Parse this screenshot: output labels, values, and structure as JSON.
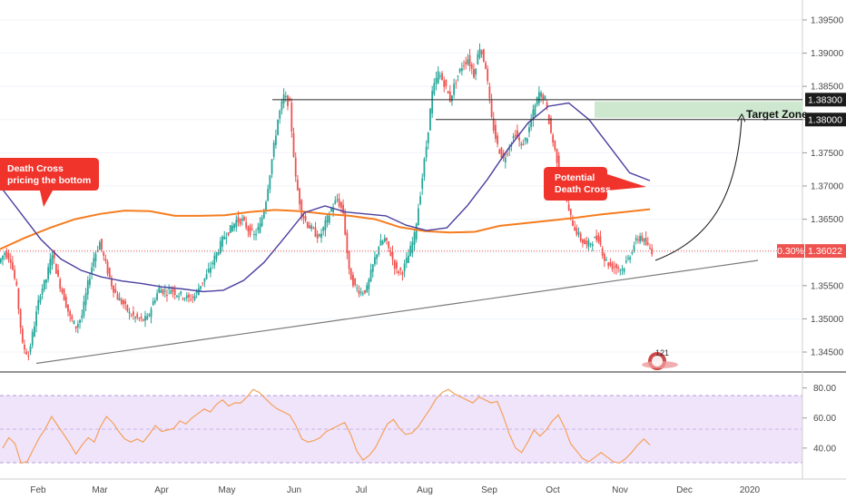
{
  "chart_data": {
    "type": "candlestick",
    "title": "",
    "price_axis": {
      "ticks": [
        "1.39500",
        "1.39000",
        "1.38500",
        "1.38000",
        "1.37500",
        "1.37000",
        "1.36500",
        "1.36000",
        "1.35500",
        "1.35000",
        "1.34500"
      ],
      "ylim": [
        1.342,
        1.398
      ]
    },
    "time_axis": {
      "labels": [
        "Feb",
        "Mar",
        "Apr",
        "May",
        "Jun",
        "Jul",
        "Aug",
        "Sep",
        "Oct",
        "Nov",
        "Dec",
        "2020"
      ]
    },
    "colors": {
      "up": "#26a69a",
      "down": "#ef5350",
      "sma_fast": "#4a3f9f",
      "sma_slow": "#f57c1f",
      "rsi": "#f5a05a",
      "rsi_band": "#f0e4fb"
    },
    "series": [
      {
        "name": "",
        "type": "line",
        "values": [
          1.37,
          1.366,
          1.362,
          1.359,
          1.3573,
          1.3563,
          1.3557,
          1.3553,
          1.3548,
          1.3545,
          1.3541,
          1.3543,
          1.3558,
          1.3585,
          1.3622,
          1.366,
          1.367,
          1.3661,
          1.3658,
          1.3655,
          1.3641,
          1.3633,
          1.3637,
          1.367,
          1.371,
          1.3755,
          1.3795,
          1.382,
          1.3825,
          1.38,
          1.376,
          1.372,
          1.3708
        ]
      },
      {
        "name": "",
        "type": "line",
        "values": [
          1.3605,
          1.3622,
          1.3637,
          1.365,
          1.3658,
          1.3663,
          1.3662,
          1.3655,
          1.3655,
          1.3656,
          1.3661,
          1.3664,
          1.3662,
          1.3658,
          1.3655,
          1.365,
          1.3638,
          1.3632,
          1.363,
          1.3631,
          1.364,
          1.3644,
          1.3648,
          1.3652,
          1.3657,
          1.3661,
          1.3665
        ]
      }
    ],
    "closes": [
      1.36,
      1.359,
      1.3545,
      1.346,
      1.3445,
      1.3492,
      1.354,
      1.356,
      1.36,
      1.356,
      1.3532,
      1.3502,
      1.3488,
      1.3505,
      1.3552,
      1.3592,
      1.3615,
      1.3582,
      1.3552,
      1.3532,
      1.3522,
      1.3508,
      1.3502,
      1.3498,
      1.35,
      1.3525,
      1.3545,
      1.354,
      1.3545,
      1.3538,
      1.3535,
      1.353,
      1.3535,
      1.3552,
      1.3565,
      1.3585,
      1.3605,
      1.3625,
      1.3635,
      1.3648,
      1.3648,
      1.3635,
      1.3625,
      1.364,
      1.368,
      1.374,
      1.38,
      1.3835,
      1.3822,
      1.371,
      1.366,
      1.3642,
      1.3632,
      1.3622,
      1.3643,
      1.3665,
      1.368,
      1.366,
      1.357,
      1.3548,
      1.354,
      1.3545,
      1.358,
      1.361,
      1.362,
      1.3598,
      1.3572,
      1.3572,
      1.3595,
      1.3625,
      1.369,
      1.376,
      1.384,
      1.387,
      1.3855,
      1.383,
      1.386,
      1.388,
      1.3892,
      1.3868,
      1.391,
      1.388,
      1.38,
      1.376,
      1.374,
      1.376,
      1.378,
      1.376,
      1.3775,
      1.381,
      1.384,
      1.383,
      1.378,
      1.374,
      1.3712,
      1.366,
      1.3636,
      1.362,
      1.361,
      1.3618,
      1.3622,
      1.359,
      1.358,
      1.3578,
      1.3575,
      1.359,
      1.3612,
      1.3625,
      1.3612,
      1.3602
    ],
    "price_line": {
      "value": "1.36022",
      "change": "0.30%",
      "label_color": "#ef5350"
    },
    "levels": [
      {
        "value": "1.38300",
        "label_color": "#1c1c1c"
      },
      {
        "value": "1.38000",
        "label_color": "#1c1c1c"
      }
    ],
    "trendline": {
      "from": 1.3433,
      "to": 1.3588
    },
    "annotations": {
      "death_cross": "Death Cross\npricing the bottom",
      "potential": "Potential\nDeath Cross",
      "target_zone": "Target Zone",
      "watermark_badge": "121"
    },
    "rsi": {
      "ticks": [
        "80.00",
        "60.00",
        "40.00"
      ],
      "ylim": [
        20,
        90
      ],
      "upper": 70,
      "lower": 30,
      "values": [
        40,
        47,
        43,
        30,
        31,
        39,
        47,
        53,
        61,
        55,
        49,
        43,
        36,
        42,
        47,
        44,
        54,
        61,
        57,
        51,
        46,
        44,
        46,
        44,
        49,
        55,
        51,
        52,
        53,
        58,
        56,
        60,
        63,
        66,
        64,
        69,
        72,
        68,
        70,
        70,
        74,
        79,
        77,
        73,
        69,
        66,
        64,
        62,
        55,
        46,
        44,
        45,
        47,
        51,
        53,
        55,
        57,
        49,
        38,
        32,
        35,
        40,
        48,
        56,
        59,
        53,
        49,
        50,
        54,
        60,
        66,
        73,
        77,
        79,
        76,
        74,
        72,
        70,
        74,
        72,
        70,
        71,
        61,
        49,
        40,
        37,
        44,
        52,
        48,
        52,
        58,
        62,
        54,
        43,
        38,
        33,
        31,
        34,
        37,
        34,
        31,
        30,
        33,
        37,
        42,
        46,
        42
      ]
    }
  }
}
